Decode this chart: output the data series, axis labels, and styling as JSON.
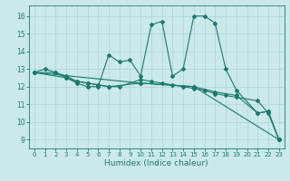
{
  "xlabel": "Humidex (Indice chaleur)",
  "xlim": [
    -0.5,
    23.5
  ],
  "ylim": [
    8.5,
    16.6
  ],
  "xticks": [
    0,
    1,
    2,
    3,
    4,
    5,
    6,
    7,
    8,
    9,
    10,
    11,
    12,
    13,
    14,
    15,
    16,
    17,
    18,
    19,
    20,
    21,
    22,
    23
  ],
  "yticks": [
    9,
    10,
    11,
    12,
    13,
    14,
    15,
    16
  ],
  "bg_color": "#cce9e9",
  "line_color": "#1a7a6e",
  "grid_color": "#aad4d4",
  "line1_x": [
    0,
    1,
    2,
    3,
    4,
    5,
    6,
    7,
    8,
    9,
    10,
    11,
    12,
    13,
    14,
    15,
    16,
    17,
    18,
    19,
    21,
    22,
    23
  ],
  "line1_y": [
    12.8,
    13.0,
    12.8,
    12.5,
    12.2,
    12.0,
    12.0,
    13.8,
    13.4,
    13.5,
    12.6,
    15.5,
    15.7,
    12.6,
    13.0,
    16.0,
    16.0,
    15.6,
    13.0,
    11.8,
    10.5,
    10.6,
    9.0
  ],
  "line2_x": [
    0,
    2,
    3,
    4,
    5,
    6,
    7,
    8,
    10,
    11,
    12,
    13,
    14,
    15,
    16,
    17,
    18,
    19,
    21,
    22,
    23
  ],
  "line2_y": [
    12.8,
    12.8,
    12.6,
    12.3,
    12.2,
    12.1,
    12.0,
    12.0,
    12.4,
    12.3,
    12.2,
    12.1,
    12.0,
    11.9,
    11.8,
    11.6,
    11.5,
    11.4,
    11.2,
    10.5,
    9.0
  ],
  "line3_x": [
    0,
    3,
    4,
    5,
    6,
    7,
    10,
    15,
    17,
    19,
    21,
    22,
    23
  ],
  "line3_y": [
    12.8,
    12.5,
    12.3,
    12.2,
    12.1,
    12.0,
    12.2,
    12.0,
    11.7,
    11.5,
    10.5,
    10.6,
    9.0
  ],
  "line4_x": [
    0,
    10,
    15,
    23
  ],
  "line4_y": [
    12.8,
    12.2,
    12.0,
    9.0
  ]
}
